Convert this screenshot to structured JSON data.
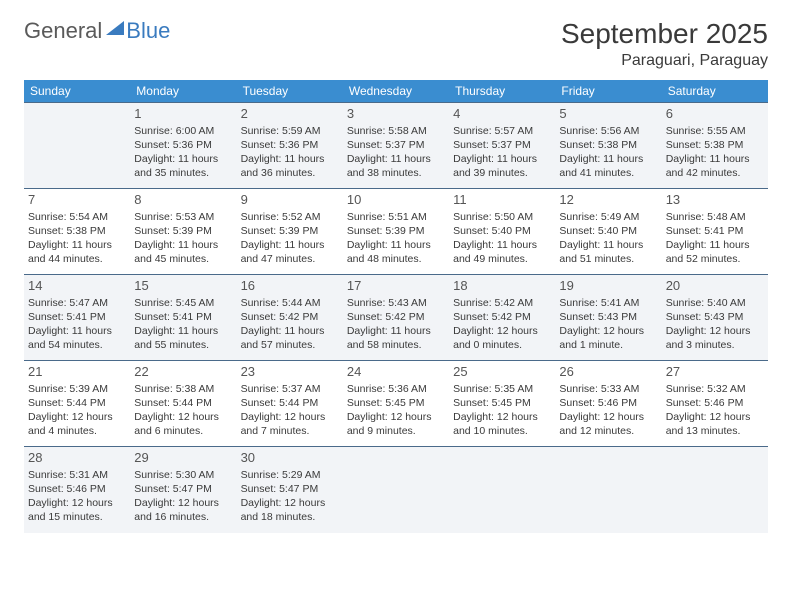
{
  "logo": {
    "general": "General",
    "blue": "Blue"
  },
  "title": "September 2025",
  "location": "Paraguari, Paraguay",
  "colors": {
    "header_bg": "#3a8dd0",
    "header_text": "#ffffff",
    "row_border": "#4a6a8a",
    "alt_row_bg": "#f2f4f7",
    "text": "#3a3a3a",
    "logo_blue": "#3a7bbf",
    "logo_gray": "#5a5a5a"
  },
  "day_names": [
    "Sunday",
    "Monday",
    "Tuesday",
    "Wednesday",
    "Thursday",
    "Friday",
    "Saturday"
  ],
  "weeks": [
    [
      null,
      {
        "n": "1",
        "sr": "Sunrise: 6:00 AM",
        "ss": "Sunset: 5:36 PM",
        "dl": "Daylight: 11 hours and 35 minutes."
      },
      {
        "n": "2",
        "sr": "Sunrise: 5:59 AM",
        "ss": "Sunset: 5:36 PM",
        "dl": "Daylight: 11 hours and 36 minutes."
      },
      {
        "n": "3",
        "sr": "Sunrise: 5:58 AM",
        "ss": "Sunset: 5:37 PM",
        "dl": "Daylight: 11 hours and 38 minutes."
      },
      {
        "n": "4",
        "sr": "Sunrise: 5:57 AM",
        "ss": "Sunset: 5:37 PM",
        "dl": "Daylight: 11 hours and 39 minutes."
      },
      {
        "n": "5",
        "sr": "Sunrise: 5:56 AM",
        "ss": "Sunset: 5:38 PM",
        "dl": "Daylight: 11 hours and 41 minutes."
      },
      {
        "n": "6",
        "sr": "Sunrise: 5:55 AM",
        "ss": "Sunset: 5:38 PM",
        "dl": "Daylight: 11 hours and 42 minutes."
      }
    ],
    [
      {
        "n": "7",
        "sr": "Sunrise: 5:54 AM",
        "ss": "Sunset: 5:38 PM",
        "dl": "Daylight: 11 hours and 44 minutes."
      },
      {
        "n": "8",
        "sr": "Sunrise: 5:53 AM",
        "ss": "Sunset: 5:39 PM",
        "dl": "Daylight: 11 hours and 45 minutes."
      },
      {
        "n": "9",
        "sr": "Sunrise: 5:52 AM",
        "ss": "Sunset: 5:39 PM",
        "dl": "Daylight: 11 hours and 47 minutes."
      },
      {
        "n": "10",
        "sr": "Sunrise: 5:51 AM",
        "ss": "Sunset: 5:39 PM",
        "dl": "Daylight: 11 hours and 48 minutes."
      },
      {
        "n": "11",
        "sr": "Sunrise: 5:50 AM",
        "ss": "Sunset: 5:40 PM",
        "dl": "Daylight: 11 hours and 49 minutes."
      },
      {
        "n": "12",
        "sr": "Sunrise: 5:49 AM",
        "ss": "Sunset: 5:40 PM",
        "dl": "Daylight: 11 hours and 51 minutes."
      },
      {
        "n": "13",
        "sr": "Sunrise: 5:48 AM",
        "ss": "Sunset: 5:41 PM",
        "dl": "Daylight: 11 hours and 52 minutes."
      }
    ],
    [
      {
        "n": "14",
        "sr": "Sunrise: 5:47 AM",
        "ss": "Sunset: 5:41 PM",
        "dl": "Daylight: 11 hours and 54 minutes."
      },
      {
        "n": "15",
        "sr": "Sunrise: 5:45 AM",
        "ss": "Sunset: 5:41 PM",
        "dl": "Daylight: 11 hours and 55 minutes."
      },
      {
        "n": "16",
        "sr": "Sunrise: 5:44 AM",
        "ss": "Sunset: 5:42 PM",
        "dl": "Daylight: 11 hours and 57 minutes."
      },
      {
        "n": "17",
        "sr": "Sunrise: 5:43 AM",
        "ss": "Sunset: 5:42 PM",
        "dl": "Daylight: 11 hours and 58 minutes."
      },
      {
        "n": "18",
        "sr": "Sunrise: 5:42 AM",
        "ss": "Sunset: 5:42 PM",
        "dl": "Daylight: 12 hours and 0 minutes."
      },
      {
        "n": "19",
        "sr": "Sunrise: 5:41 AM",
        "ss": "Sunset: 5:43 PM",
        "dl": "Daylight: 12 hours and 1 minute."
      },
      {
        "n": "20",
        "sr": "Sunrise: 5:40 AM",
        "ss": "Sunset: 5:43 PM",
        "dl": "Daylight: 12 hours and 3 minutes."
      }
    ],
    [
      {
        "n": "21",
        "sr": "Sunrise: 5:39 AM",
        "ss": "Sunset: 5:44 PM",
        "dl": "Daylight: 12 hours and 4 minutes."
      },
      {
        "n": "22",
        "sr": "Sunrise: 5:38 AM",
        "ss": "Sunset: 5:44 PM",
        "dl": "Daylight: 12 hours and 6 minutes."
      },
      {
        "n": "23",
        "sr": "Sunrise: 5:37 AM",
        "ss": "Sunset: 5:44 PM",
        "dl": "Daylight: 12 hours and 7 minutes."
      },
      {
        "n": "24",
        "sr": "Sunrise: 5:36 AM",
        "ss": "Sunset: 5:45 PM",
        "dl": "Daylight: 12 hours and 9 minutes."
      },
      {
        "n": "25",
        "sr": "Sunrise: 5:35 AM",
        "ss": "Sunset: 5:45 PM",
        "dl": "Daylight: 12 hours and 10 minutes."
      },
      {
        "n": "26",
        "sr": "Sunrise: 5:33 AM",
        "ss": "Sunset: 5:46 PM",
        "dl": "Daylight: 12 hours and 12 minutes."
      },
      {
        "n": "27",
        "sr": "Sunrise: 5:32 AM",
        "ss": "Sunset: 5:46 PM",
        "dl": "Daylight: 12 hours and 13 minutes."
      }
    ],
    [
      {
        "n": "28",
        "sr": "Sunrise: 5:31 AM",
        "ss": "Sunset: 5:46 PM",
        "dl": "Daylight: 12 hours and 15 minutes."
      },
      {
        "n": "29",
        "sr": "Sunrise: 5:30 AM",
        "ss": "Sunset: 5:47 PM",
        "dl": "Daylight: 12 hours and 16 minutes."
      },
      {
        "n": "30",
        "sr": "Sunrise: 5:29 AM",
        "ss": "Sunset: 5:47 PM",
        "dl": "Daylight: 12 hours and 18 minutes."
      },
      null,
      null,
      null,
      null
    ]
  ]
}
